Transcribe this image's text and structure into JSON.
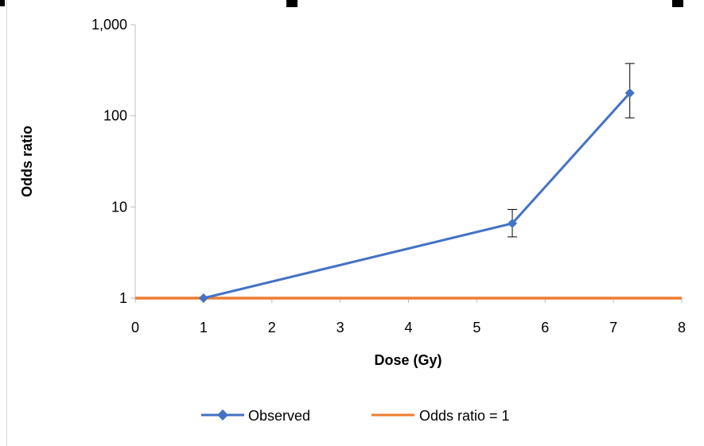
{
  "chart_data": {
    "type": "line",
    "xlabel": "Dose (Gy)",
    "ylabel": "Odds ratio",
    "y_scale": "log",
    "xlim": [
      0,
      8
    ],
    "ylim": [
      1,
      1000
    ],
    "x_ticks": [
      "0",
      "1",
      "2",
      "3",
      "4",
      "5",
      "6",
      "7",
      "8"
    ],
    "x_tick_values": [
      0,
      1,
      2,
      3,
      4,
      5,
      6,
      7,
      8
    ],
    "y_ticks": [
      "1",
      "10",
      "100",
      "1,000"
    ],
    "y_tick_values": [
      1,
      10,
      100,
      1000
    ],
    "grid": false,
    "legend_position": "bottom",
    "series": [
      {
        "name": "Observed",
        "color": "#4472C4",
        "marker": "diamond",
        "points": [
          {
            "x": 1.0,
            "y": 1.0
          },
          {
            "x": 5.52,
            "y": 6.6,
            "err_low": 4.7,
            "err_high": 9.4
          },
          {
            "x": 7.24,
            "y": 178,
            "err_low": 95,
            "err_high": 375
          }
        ]
      },
      {
        "name": "Odds ratio = 1",
        "color": "#ED7D31",
        "marker": "none",
        "points": [
          {
            "x": 0,
            "y": 1
          },
          {
            "x": 8,
            "y": 1
          }
        ]
      }
    ]
  }
}
